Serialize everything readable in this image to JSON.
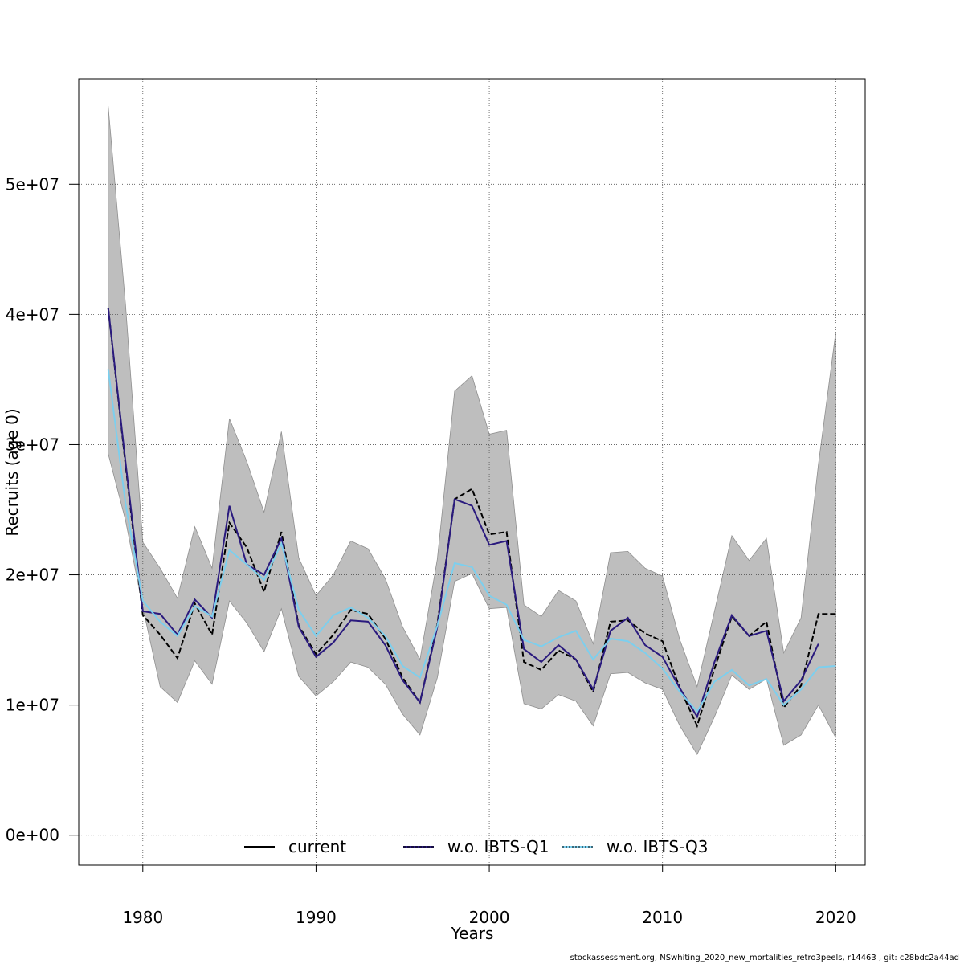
{
  "chart_data": {
    "type": "line",
    "xlabel": "Years",
    "ylabel": "Recruits (age 0)",
    "xlim": [
      1976.3,
      2021.7
    ],
    "ylim": [
      -2300000,
      58100000
    ],
    "x_ticks": [
      1980,
      1990,
      2000,
      2010,
      2020
    ],
    "y_ticks": [
      0,
      10000000,
      20000000,
      30000000,
      40000000,
      50000000
    ],
    "y_tick_labels": [
      "0e+00",
      "1e+07",
      "2e+07",
      "3e+07",
      "4e+07",
      "5e+07"
    ],
    "grid": true,
    "legend_position": "bottom",
    "years": [
      1978,
      1979,
      1980,
      1981,
      1982,
      1983,
      1984,
      1985,
      1986,
      1987,
      1988,
      1989,
      1990,
      1991,
      1992,
      1993,
      1994,
      1995,
      1996,
      1997,
      1998,
      1999,
      2000,
      2001,
      2002,
      2003,
      2004,
      2005,
      2006,
      2007,
      2008,
      2009,
      2010,
      2011,
      2012,
      2013,
      2014,
      2015,
      2016,
      2017,
      2018,
      2019,
      2020
    ],
    "band": {
      "upper": [
        56000000,
        40800000,
        22500000,
        20500000,
        18200000,
        23700000,
        20500000,
        32000000,
        28700000,
        24800000,
        31000000,
        21300000,
        18400000,
        20000000,
        22600000,
        22000000,
        19700000,
        16000000,
        13500000,
        21200000,
        34100000,
        35300000,
        30800000,
        31100000,
        17700000,
        16800000,
        18800000,
        18000000,
        14700000,
        21700000,
        21800000,
        20500000,
        19900000,
        15000000,
        11400000,
        17200000,
        23000000,
        21100000,
        22800000,
        14000000,
        16700000,
        28500000,
        38600000
      ],
      "lower": [
        29300000,
        24200000,
        17500000,
        11400000,
        10200000,
        13400000,
        11600000,
        18000000,
        16300000,
        14100000,
        17400000,
        12200000,
        10700000,
        11800000,
        13300000,
        12900000,
        11600000,
        9300000,
        7700000,
        12100000,
        19500000,
        20100000,
        17400000,
        17500000,
        10100000,
        9700000,
        10800000,
        10300000,
        8400000,
        12400000,
        12500000,
        11700000,
        11200000,
        8400000,
        6200000,
        9100000,
        12300000,
        11200000,
        12000000,
        6900000,
        7700000,
        10000000,
        7500000
      ]
    },
    "series": [
      {
        "name": "current",
        "color": "#000000",
        "dash": "dashed",
        "values": [
          40500000,
          28500000,
          16900000,
          15400000,
          13600000,
          17800000,
          15400000,
          24000000,
          22100000,
          18700000,
          23300000,
          16100000,
          13900000,
          15400000,
          17300000,
          17000000,
          15100000,
          12100000,
          10200000,
          16200000,
          25800000,
          26600000,
          23100000,
          23300000,
          13300000,
          12700000,
          14200000,
          13500000,
          11000000,
          16400000,
          16500000,
          15500000,
          14900000,
          11300000,
          8400000,
          12800000,
          16800000,
          15300000,
          16400000,
          9800000,
          11500000,
          17000000,
          17000000
        ]
      },
      {
        "name": "w.o. IBTS-Q1",
        "color": "#2a1a7e",
        "dash": "solid",
        "values": [
          40500000,
          28700000,
          17200000,
          17000000,
          15400000,
          18100000,
          16700000,
          25300000,
          20800000,
          20000000,
          22800000,
          16000000,
          13700000,
          14800000,
          16500000,
          16400000,
          14600000,
          11900000,
          10200000,
          16000000,
          25800000,
          25300000,
          22300000,
          22600000,
          14300000,
          13300000,
          14600000,
          13500000,
          11200000,
          15700000,
          16700000,
          14600000,
          13700000,
          11300000,
          9100000,
          13300000,
          16900000,
          15300000,
          15700000,
          10300000,
          11900000,
          14700000,
          null
        ]
      },
      {
        "name": "w.o. IBTS-Q3",
        "color": "#7ccfee",
        "dash": "solid",
        "values": [
          35800000,
          25500000,
          18000000,
          16400000,
          15300000,
          17600000,
          16800000,
          21900000,
          20800000,
          19600000,
          22400000,
          17300000,
          15300000,
          16900000,
          17500000,
          16700000,
          15300000,
          13000000,
          12100000,
          16100000,
          20900000,
          20600000,
          18400000,
          17700000,
          15000000,
          14500000,
          15200000,
          15700000,
          13500000,
          15100000,
          14900000,
          14000000,
          12800000,
          11000000,
          9500000,
          11800000,
          12700000,
          11500000,
          12000000,
          10000000,
          11200000,
          12900000,
          13000000
        ]
      }
    ]
  },
  "legend": {
    "items": [
      "current",
      "w.o. IBTS-Q1",
      "w.o. IBTS-Q3"
    ]
  },
  "footer": "stockassessment.org, NSwhiting_2020_new_mortalities_retro3peels, r14463 , git: c28bdc2a44ad"
}
